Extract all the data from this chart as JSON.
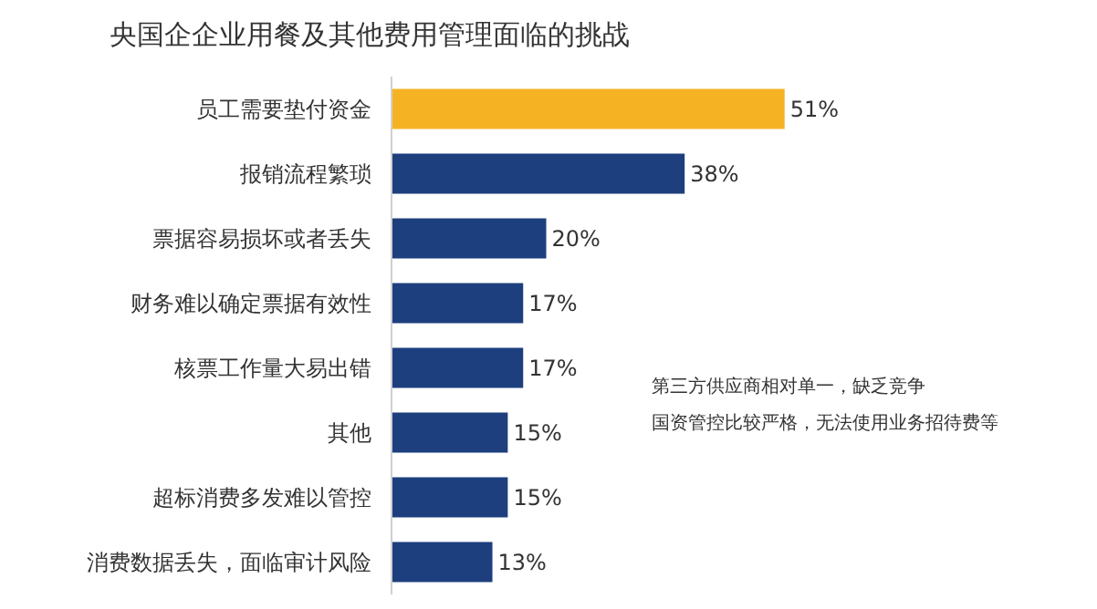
{
  "chart_data": {
    "type": "bar",
    "orientation": "horizontal",
    "title": "央国企企业用餐及其他费用管理面临的挑战",
    "categories": [
      "员工需要垫付资金",
      "报销流程繁琐",
      "票据容易损坏或者丢失",
      "财务难以确定票据有效性",
      "核票工作量大易出错",
      "其他",
      "超标消费多发难以管控",
      "消费数据丢失，面临审计风险"
    ],
    "values": [
      51,
      38,
      20,
      17,
      17,
      15,
      15,
      13
    ],
    "colors": [
      "#f5b324",
      "#1d3f7e",
      "#1d3f7e",
      "#1d3f7e",
      "#1d3f7e",
      "#1d3f7e",
      "#1d3f7e",
      "#1d3f7e"
    ],
    "value_labels": [
      "51%",
      "38%",
      "20%",
      "17%",
      "17%",
      "15%",
      "15%",
      "13%"
    ],
    "annotations": [
      "第三方供应商相对单一，缺乏竞争",
      "国资管控比较严格，无法使用业务招待费等"
    ],
    "legend": false
  }
}
